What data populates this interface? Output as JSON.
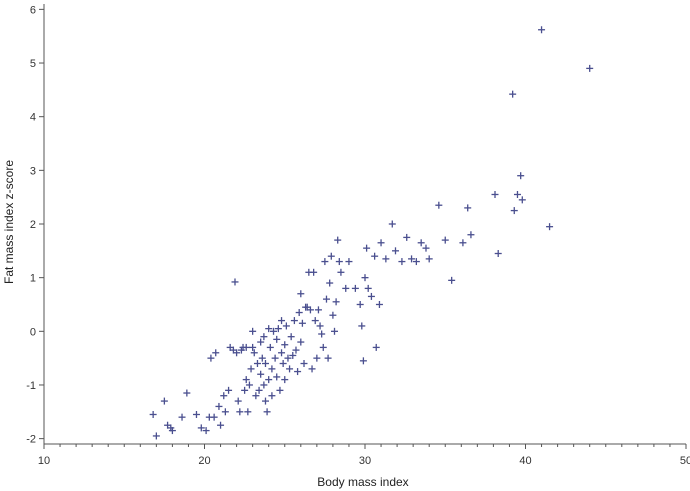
{
  "chart_data": {
    "type": "scatter",
    "title": "",
    "xlabel": "Body mass index",
    "ylabel": "Fat mass index z-score",
    "xlim": [
      10,
      50
    ],
    "ylim": [
      -2.1,
      6.1
    ],
    "xticks": [
      "10",
      "20",
      "30",
      "40",
      "50"
    ],
    "yticks": [
      "-2",
      "-1",
      "0",
      "1",
      "2",
      "3",
      "4",
      "5",
      "6"
    ],
    "grid": false,
    "marker": "plus",
    "marker_color": "#4a4f8f",
    "series": [
      {
        "points": [
          [
            16.8,
            -1.55
          ],
          [
            17.0,
            -1.95
          ],
          [
            17.5,
            -1.3
          ],
          [
            17.7,
            -1.75
          ],
          [
            17.9,
            -1.8
          ],
          [
            18.0,
            -1.85
          ],
          [
            18.6,
            -1.6
          ],
          [
            18.9,
            -1.15
          ],
          [
            19.5,
            -1.55
          ],
          [
            19.8,
            -1.8
          ],
          [
            20.1,
            -1.85
          ],
          [
            20.3,
            -1.6
          ],
          [
            20.4,
            -0.5
          ],
          [
            20.6,
            -1.6
          ],
          [
            20.7,
            -0.4
          ],
          [
            20.9,
            -1.4
          ],
          [
            21.0,
            -1.75
          ],
          [
            21.2,
            -1.2
          ],
          [
            21.3,
            -1.5
          ],
          [
            21.5,
            -1.1
          ],
          [
            21.6,
            -0.3
          ],
          [
            21.8,
            -0.35
          ],
          [
            21.9,
            0.92
          ],
          [
            22.0,
            -0.4
          ],
          [
            22.1,
            -1.3
          ],
          [
            22.2,
            -1.5
          ],
          [
            22.3,
            -0.35
          ],
          [
            22.4,
            -0.3
          ],
          [
            22.5,
            -1.1
          ],
          [
            22.6,
            -0.9
          ],
          [
            22.6,
            -0.3
          ],
          [
            22.7,
            -1.5
          ],
          [
            22.8,
            -1.0
          ],
          [
            22.9,
            -0.7
          ],
          [
            23.0,
            -0.3
          ],
          [
            23.0,
            0.0
          ],
          [
            23.1,
            -0.4
          ],
          [
            23.2,
            -1.2
          ],
          [
            23.3,
            -0.6
          ],
          [
            23.4,
            -1.1
          ],
          [
            23.5,
            -0.8
          ],
          [
            23.5,
            -0.2
          ],
          [
            23.6,
            -0.5
          ],
          [
            23.7,
            -1.0
          ],
          [
            23.7,
            -0.1
          ],
          [
            23.8,
            -1.3
          ],
          [
            23.8,
            -0.6
          ],
          [
            23.9,
            -1.5
          ],
          [
            24.0,
            -0.9
          ],
          [
            24.0,
            0.05
          ],
          [
            24.1,
            -0.3
          ],
          [
            24.2,
            -0.7
          ],
          [
            24.2,
            -1.2
          ],
          [
            24.3,
            0.0
          ],
          [
            24.4,
            -0.5
          ],
          [
            24.5,
            -0.15
          ],
          [
            24.5,
            -0.85
          ],
          [
            24.6,
            0.05
          ],
          [
            24.7,
            -1.1
          ],
          [
            24.8,
            -0.4
          ],
          [
            24.8,
            0.2
          ],
          [
            24.9,
            -0.6
          ],
          [
            25.0,
            -0.25
          ],
          [
            25.0,
            -0.9
          ],
          [
            25.1,
            0.1
          ],
          [
            25.2,
            -0.5
          ],
          [
            25.3,
            -0.7
          ],
          [
            25.4,
            -0.1
          ],
          [
            25.5,
            -0.45
          ],
          [
            25.6,
            0.2
          ],
          [
            25.7,
            -0.35
          ],
          [
            25.8,
            -0.75
          ],
          [
            25.9,
            0.35
          ],
          [
            26.0,
            0.7
          ],
          [
            26.0,
            -0.2
          ],
          [
            26.1,
            0.15
          ],
          [
            26.2,
            -0.6
          ],
          [
            26.3,
            0.45
          ],
          [
            26.4,
            0.45
          ],
          [
            26.5,
            1.1
          ],
          [
            26.6,
            0.4
          ],
          [
            26.7,
            -0.7
          ],
          [
            26.8,
            1.1
          ],
          [
            26.9,
            0.2
          ],
          [
            27.0,
            -0.5
          ],
          [
            27.1,
            0.4
          ],
          [
            27.2,
            0.1
          ],
          [
            27.3,
            -0.05
          ],
          [
            27.4,
            -0.3
          ],
          [
            27.5,
            1.3
          ],
          [
            27.6,
            0.6
          ],
          [
            27.7,
            -0.5
          ],
          [
            27.8,
            0.9
          ],
          [
            27.9,
            1.4
          ],
          [
            28.0,
            0.3
          ],
          [
            28.1,
            0.0
          ],
          [
            28.2,
            0.55
          ],
          [
            28.3,
            1.7
          ],
          [
            28.4,
            1.3
          ],
          [
            28.5,
            1.1
          ],
          [
            28.8,
            0.8
          ],
          [
            29.0,
            1.3
          ],
          [
            29.4,
            0.8
          ],
          [
            29.7,
            0.5
          ],
          [
            29.8,
            0.1
          ],
          [
            29.9,
            -0.55
          ],
          [
            30.0,
            1.0
          ],
          [
            30.1,
            1.55
          ],
          [
            30.2,
            0.8
          ],
          [
            30.4,
            0.65
          ],
          [
            30.6,
            1.4
          ],
          [
            30.7,
            -0.3
          ],
          [
            30.9,
            0.5
          ],
          [
            31.0,
            1.65
          ],
          [
            31.3,
            1.35
          ],
          [
            31.7,
            2.0
          ],
          [
            31.9,
            1.5
          ],
          [
            32.3,
            1.3
          ],
          [
            32.6,
            1.75
          ],
          [
            32.9,
            1.35
          ],
          [
            33.2,
            1.3
          ],
          [
            33.5,
            1.65
          ],
          [
            33.8,
            1.55
          ],
          [
            34.0,
            1.35
          ],
          [
            34.6,
            2.35
          ],
          [
            35.0,
            1.7
          ],
          [
            35.4,
            0.95
          ],
          [
            36.1,
            1.65
          ],
          [
            36.4,
            2.3
          ],
          [
            36.6,
            1.8
          ],
          [
            38.1,
            2.55
          ],
          [
            38.3,
            1.45
          ],
          [
            39.3,
            2.25
          ],
          [
            39.5,
            2.55
          ],
          [
            39.7,
            2.9
          ],
          [
            39.8,
            2.45
          ],
          [
            39.2,
            4.42
          ],
          [
            41.0,
            5.62
          ],
          [
            41.5,
            1.95
          ],
          [
            44.0,
            4.9
          ]
        ]
      }
    ]
  }
}
